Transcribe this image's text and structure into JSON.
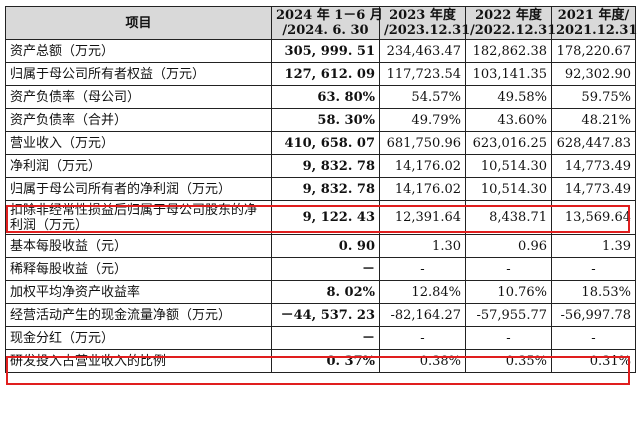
{
  "table": {
    "headers": [
      {
        "text": "项目"
      },
      {
        "line1": "2024 年 1－6 月",
        "line2": "/2024. 6. 30"
      },
      {
        "line1": "2023 年度",
        "line2": "/2023.12.31"
      },
      {
        "line1": "2022 年度",
        "line2": "/2022.12.31"
      },
      {
        "line1": "2021 年度/",
        "line2": "2021.12.31"
      }
    ],
    "rows": [
      {
        "label": "资产总额（万元）",
        "cells": [
          "305, 999. 51",
          "234,463.47",
          "182,862.38",
          "178,220.67"
        ]
      },
      {
        "label": "归属于母公司所有者权益（万元）",
        "cells": [
          "127, 612. 09",
          "117,723.54",
          "103,141.35",
          "92,302.90"
        ]
      },
      {
        "label": "资产负债率（母公司）",
        "cells": [
          "63. 80%",
          "54.57%",
          "49.58%",
          "59.75%"
        ]
      },
      {
        "label": "资产负债率（合并）",
        "cells": [
          "58. 30%",
          "49.79%",
          "43.60%",
          "48.21%"
        ]
      },
      {
        "label": "营业收入（万元）",
        "cells": [
          "410, 658. 07",
          "681,750.96",
          "623,016.25",
          "628,447.83"
        ]
      },
      {
        "label": "净利润（万元）",
        "cells": [
          "9, 832. 78",
          "14,176.02",
          "10,514.30",
          "14,773.49"
        ]
      },
      {
        "label": "归属于母公司所有者的净利润（万元）",
        "cells": [
          "9, 832. 78",
          "14,176.02",
          "10,514.30",
          "14,773.49"
        ]
      },
      {
        "label": "扣除非经常性损益后归属于母公司股东的净利润（万元）",
        "cells": [
          "9, 122. 43",
          "12,391.64",
          "8,438.71",
          "13,569.64"
        ]
      },
      {
        "label": "基本每股收益（元）",
        "cells": [
          "0. 90",
          "1.30",
          "0.96",
          "1.39"
        ]
      },
      {
        "label": "稀释每股收益（元）",
        "cells": [
          "－",
          "-",
          "-",
          "-"
        ]
      },
      {
        "label": "加权平均净资产收益率",
        "cells": [
          "8. 02%",
          "12.84%",
          "10.76%",
          "18.53%"
        ]
      },
      {
        "label": "经营活动产生的现金流量净额（万元）",
        "cells": [
          "－44, 537. 23",
          "-82,164.27",
          "-57,955.77",
          "-56,997.78"
        ]
      },
      {
        "label": "现金分红（万元）",
        "cells": [
          "－",
          "-",
          "-",
          "-"
        ]
      },
      {
        "label": "研发投入占营业收入的比例",
        "cells": [
          "0. 37%",
          "0.38%",
          "0.35%",
          "0.31%"
        ]
      }
    ]
  },
  "highlight_color": "#e01e1e"
}
